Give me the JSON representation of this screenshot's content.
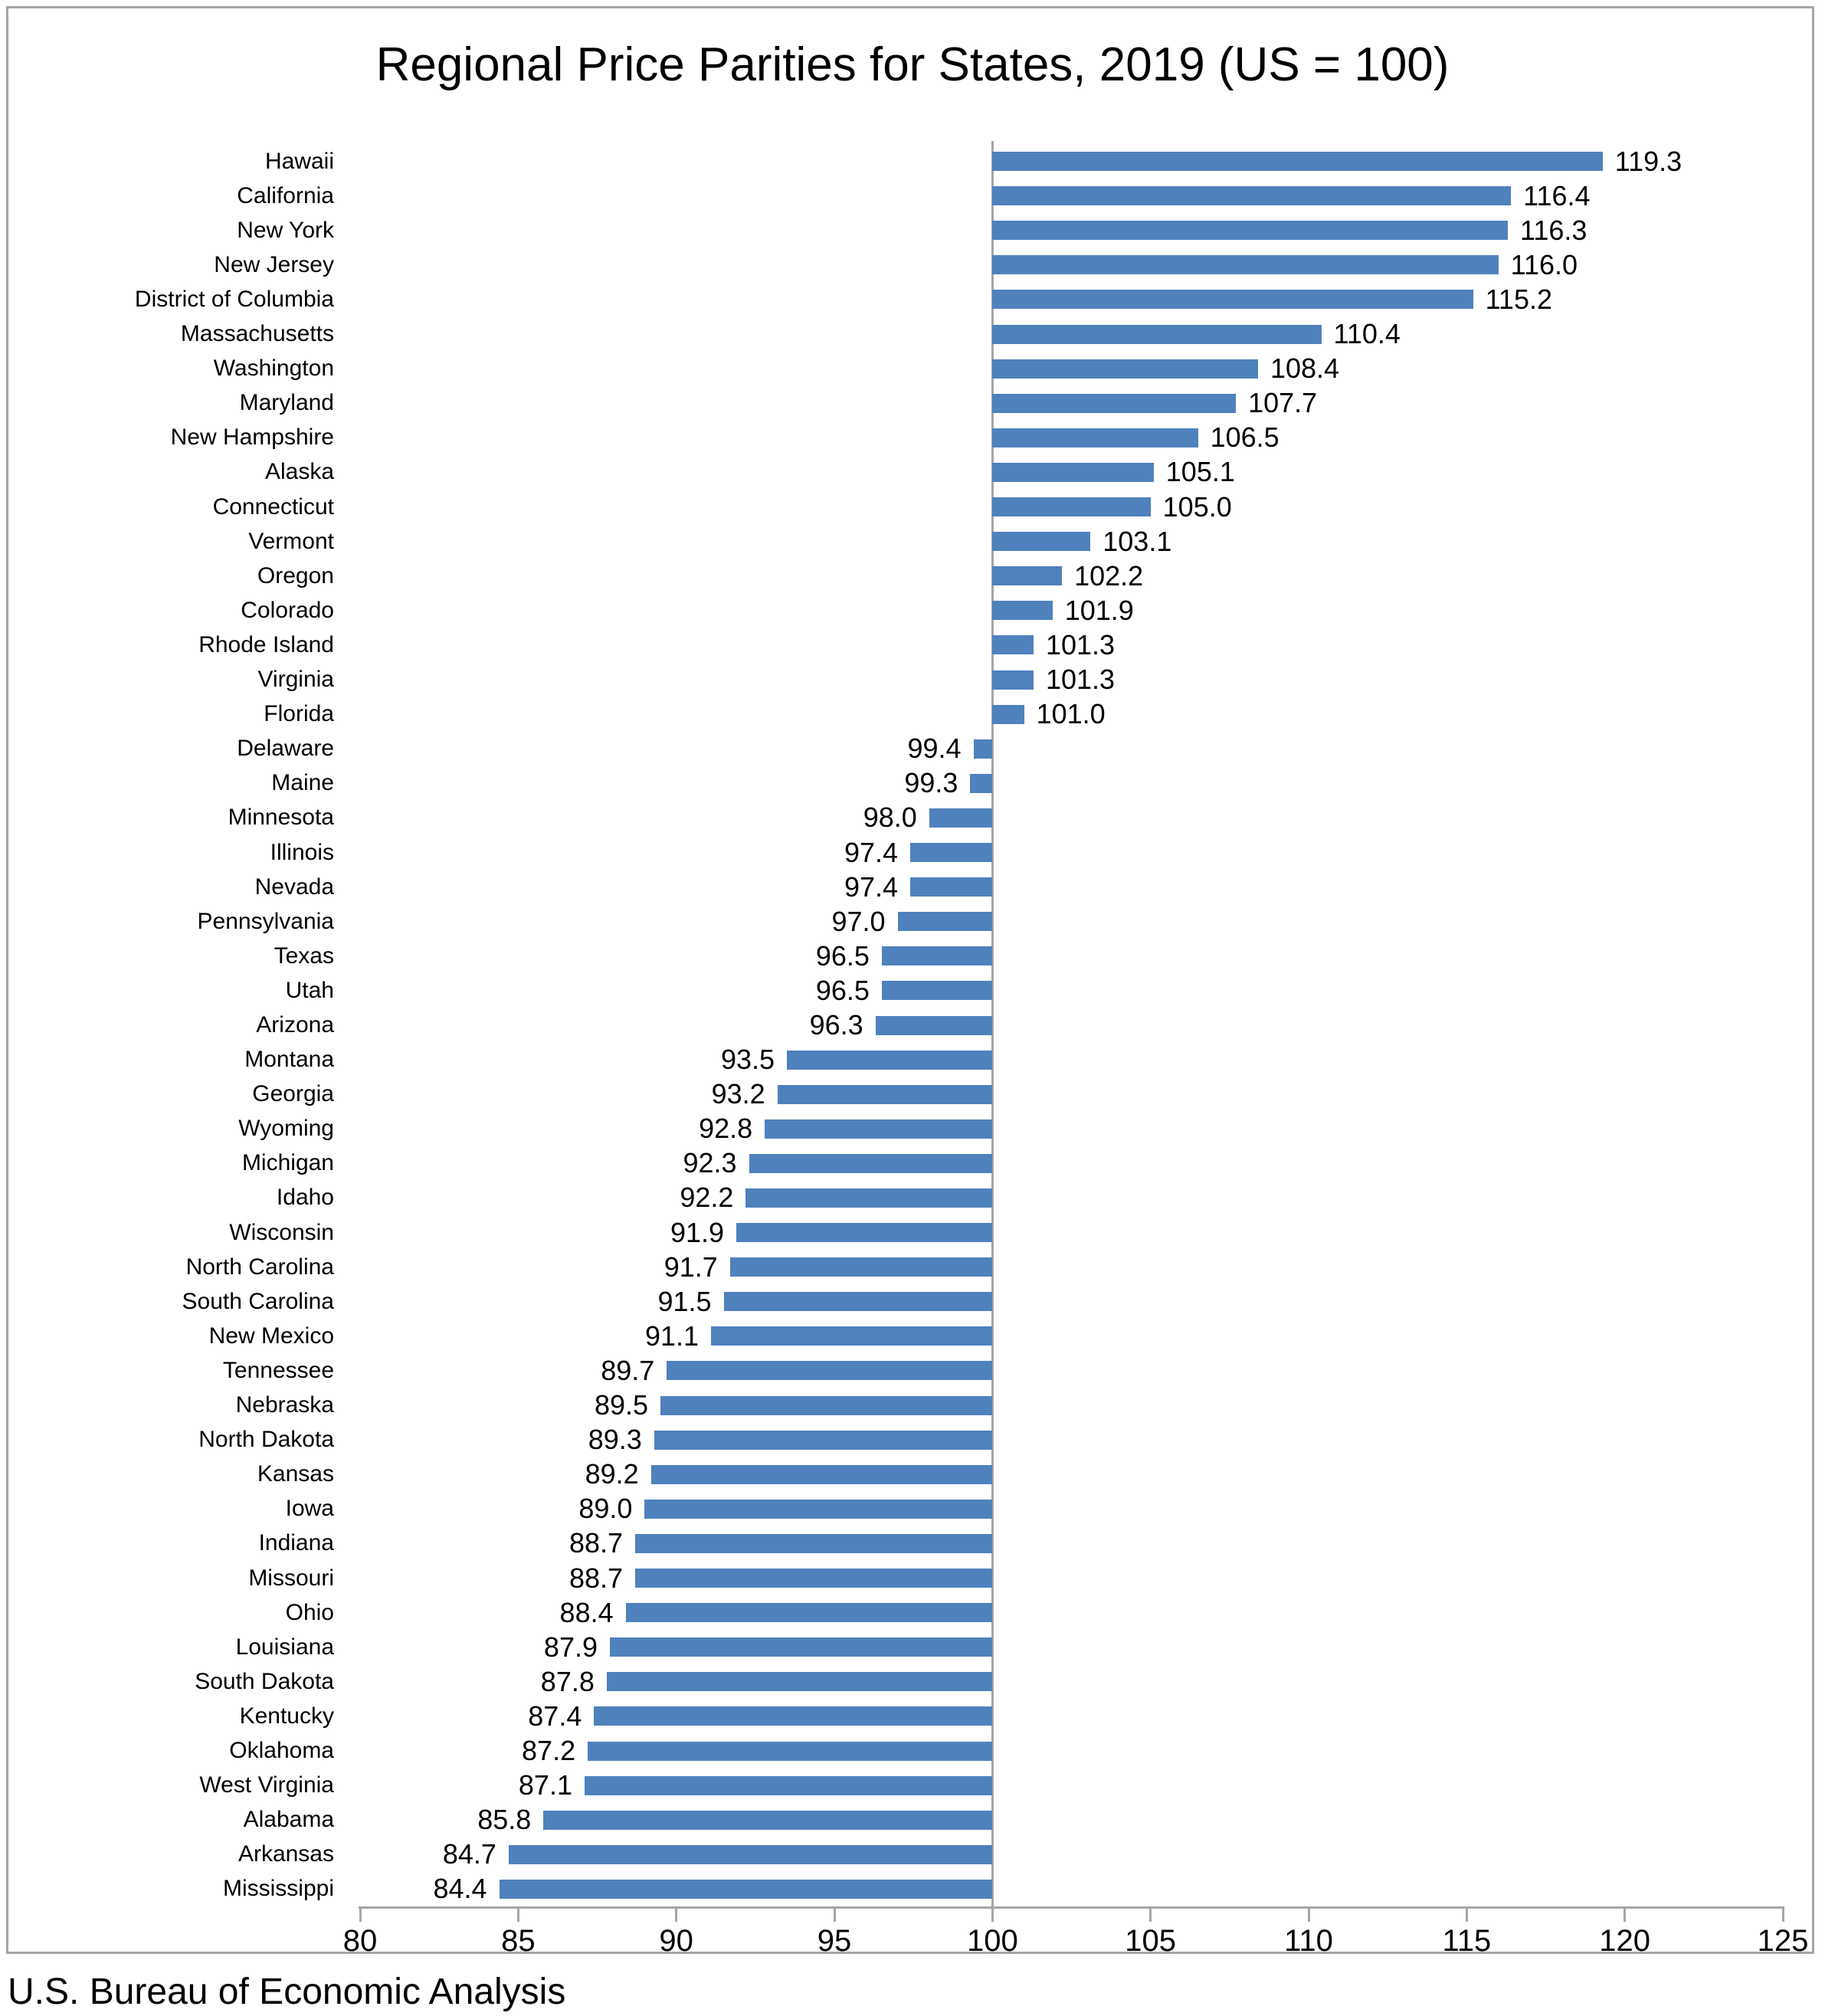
{
  "title": "Regional Price Parities for States, 2019 (US = 100)",
  "source": "U.S. Bureau of Economic Analysis",
  "colors": {
    "bar": "#4F81BD",
    "axis": "#A6A6A6",
    "text": "#000000",
    "background": "#FFFFFF"
  },
  "chart_data": {
    "type": "bar",
    "orientation": "horizontal",
    "title": "Regional Price Parities for States, 2019 (US = 100)",
    "xlabel": "",
    "ylabel": "",
    "xlim": [
      80,
      125
    ],
    "x_ticks": [
      80,
      85,
      90,
      95,
      100,
      105,
      110,
      115,
      120,
      125
    ],
    "baseline": 100,
    "grid": false,
    "legend": false,
    "value_label_format": "one_decimal",
    "categories": [
      "Hawaii",
      "California",
      "New York",
      "New Jersey",
      "District of Columbia",
      "Massachusetts",
      "Washington",
      "Maryland",
      "New Hampshire",
      "Alaska",
      "Connecticut",
      "Vermont",
      "Oregon",
      "Colorado",
      "Rhode Island",
      "Virginia",
      "Florida",
      "Delaware",
      "Maine",
      "Minnesota",
      "Illinois",
      "Nevada",
      "Pennsylvania",
      "Texas",
      "Utah",
      "Arizona",
      "Montana",
      "Georgia",
      "Wyoming",
      "Michigan",
      "Idaho",
      "Wisconsin",
      "North Carolina",
      "South Carolina",
      "New Mexico",
      "Tennessee",
      "Nebraska",
      "North Dakota",
      "Kansas",
      "Iowa",
      "Indiana",
      "Missouri",
      "Ohio",
      "Louisiana",
      "South Dakota",
      "Kentucky",
      "Oklahoma",
      "West Virginia",
      "Alabama",
      "Arkansas",
      "Mississippi"
    ],
    "values": [
      119.3,
      116.4,
      116.3,
      116.0,
      115.2,
      110.4,
      108.4,
      107.7,
      106.5,
      105.1,
      105.0,
      103.1,
      102.2,
      101.9,
      101.3,
      101.3,
      101.0,
      99.4,
      99.3,
      98.0,
      97.4,
      97.4,
      97.0,
      96.5,
      96.5,
      96.3,
      93.5,
      93.2,
      92.8,
      92.3,
      92.2,
      91.9,
      91.7,
      91.5,
      91.1,
      89.7,
      89.5,
      89.3,
      89.2,
      89.0,
      88.7,
      88.7,
      88.4,
      87.9,
      87.8,
      87.4,
      87.2,
      87.1,
      85.8,
      84.7,
      84.4
    ]
  }
}
